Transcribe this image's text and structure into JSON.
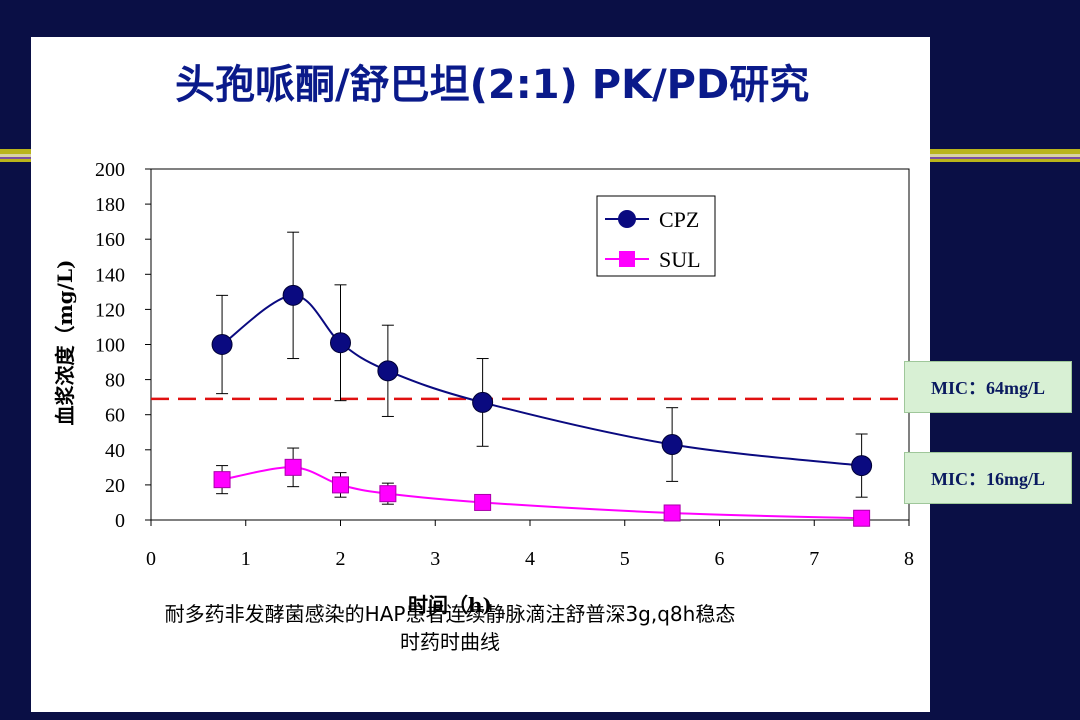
{
  "slide": {
    "title": "头孢哌酮/舒巴坦(2:1) PK/PD研究",
    "caption_line1": "耐多药非发酵菌感染的HAP患者连续静脉滴注舒普深3g,q8h稳态",
    "caption_line2": "时药时曲线"
  },
  "mic_labels": [
    "MIC：64mg/L",
    "MIC：16mg/L"
  ],
  "chart_data": {
    "type": "line",
    "xlabel": "时间（h)",
    "ylabel": "血浆浓度（mg/L)",
    "xlim": [
      0,
      8
    ],
    "ylim": [
      0,
      200
    ],
    "xticks": [
      0,
      1,
      2,
      3,
      4,
      5,
      6,
      7,
      8
    ],
    "yticks": [
      0,
      20,
      40,
      60,
      80,
      100,
      120,
      140,
      160,
      180,
      200
    ],
    "legend_position": "top-right",
    "reference_line": {
      "y": 69,
      "color": "#e01010",
      "style": "dashed"
    },
    "series": [
      {
        "name": "CPZ",
        "color": "#0a0a80",
        "marker": "circle",
        "x": [
          0.75,
          1.5,
          2.0,
          2.5,
          3.5,
          5.5,
          7.5
        ],
        "values": [
          100,
          128,
          101,
          85,
          67,
          43,
          31
        ],
        "error": [
          28,
          36,
          33,
          26,
          25,
          21,
          18
        ]
      },
      {
        "name": "SUL",
        "color": "#ff00ff",
        "marker": "square",
        "x": [
          0.75,
          1.5,
          2.0,
          2.5,
          3.5,
          5.5,
          7.5
        ],
        "values": [
          23,
          30,
          20,
          15,
          10,
          4,
          1
        ],
        "error": [
          8,
          11,
          7,
          6,
          4,
          3,
          1
        ]
      }
    ]
  }
}
